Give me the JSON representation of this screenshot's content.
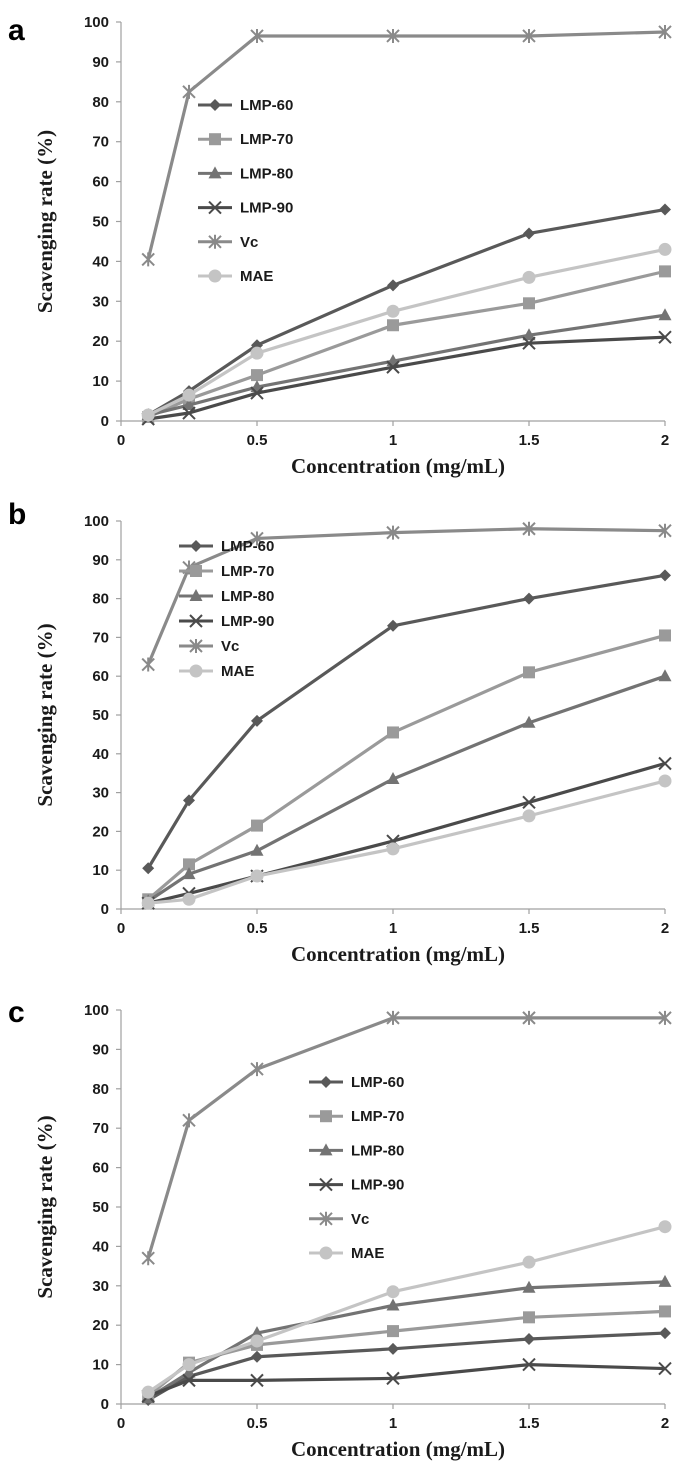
{
  "chart_data": [
    {
      "type": "line",
      "panel_label": "a",
      "xlabel": "Concentration (mg/mL)",
      "ylabel": "Scavenging rate (%)",
      "xlim": [
        0,
        2
      ],
      "ylim": [
        0,
        100
      ],
      "x_ticks": [
        "0",
        "0.5",
        "1",
        "1.5",
        "2"
      ],
      "y_ticks": [
        "0",
        "10",
        "20",
        "30",
        "40",
        "50",
        "60",
        "70",
        "80",
        "90",
        "100"
      ],
      "x": [
        0.1,
        0.25,
        0.5,
        1,
        1.5,
        2
      ],
      "grid": false,
      "legend_position": "top-left",
      "series": [
        {
          "name": "LMP-60",
          "values": [
            1.5,
            7.5,
            19,
            34,
            47,
            53
          ]
        },
        {
          "name": "LMP-70",
          "values": [
            1,
            5.5,
            11.5,
            24,
            29.5,
            37.5
          ]
        },
        {
          "name": "LMP-80",
          "values": [
            1.5,
            4,
            8.5,
            15,
            21.5,
            26.5
          ]
        },
        {
          "name": "LMP-90",
          "values": [
            0.5,
            2,
            7,
            13.5,
            19.5,
            21
          ]
        },
        {
          "name": "Vc",
          "values": [
            40.5,
            82.5,
            96.5,
            96.5,
            96.5,
            97.5
          ]
        },
        {
          "name": "MAE",
          "values": [
            1.5,
            6.5,
            17,
            27.5,
            36,
            43
          ]
        }
      ]
    },
    {
      "type": "line",
      "panel_label": "b",
      "xlabel": "Concentration (mg/mL)",
      "ylabel": "Scavenging rate (%)",
      "xlim": [
        0,
        2
      ],
      "ylim": [
        0,
        100
      ],
      "x_ticks": [
        "0",
        "0.5",
        "1",
        "1.5",
        "2"
      ],
      "y_ticks": [
        "0",
        "10",
        "20",
        "30",
        "40",
        "50",
        "60",
        "70",
        "80",
        "90",
        "100"
      ],
      "x": [
        0.1,
        0.25,
        0.5,
        1,
        1.5,
        2
      ],
      "grid": false,
      "legend_position": "top-left",
      "series": [
        {
          "name": "LMP-60",
          "values": [
            10.5,
            28,
            48.5,
            73,
            80,
            86
          ]
        },
        {
          "name": "LMP-70",
          "values": [
            2.5,
            11.5,
            21.5,
            45.5,
            61,
            70.5
          ]
        },
        {
          "name": "LMP-80",
          "values": [
            2,
            9,
            15,
            33.5,
            48,
            60
          ]
        },
        {
          "name": "LMP-90",
          "values": [
            1.5,
            4,
            8.5,
            17.5,
            27.5,
            37.5
          ]
        },
        {
          "name": "Vc",
          "values": [
            63,
            88,
            95.5,
            97,
            98,
            97.5
          ]
        },
        {
          "name": "MAE",
          "values": [
            1.5,
            2.5,
            8.5,
            15.5,
            24,
            33
          ]
        }
      ]
    },
    {
      "type": "line",
      "panel_label": "c",
      "xlabel": "Concentration (mg/mL)",
      "ylabel": "Scavenging rate (%)",
      "xlim": [
        0,
        2
      ],
      "ylim": [
        0,
        100
      ],
      "x_ticks": [
        "0",
        "0.5",
        "1",
        "1.5",
        "2"
      ],
      "y_ticks": [
        "0",
        "10",
        "20",
        "30",
        "40",
        "50",
        "60",
        "70",
        "80",
        "90",
        "100"
      ],
      "x": [
        0.1,
        0.25,
        0.5,
        1,
        1.5,
        2
      ],
      "grid": false,
      "legend_position": "top-center",
      "series": [
        {
          "name": "LMP-60",
          "values": [
            1,
            7,
            12,
            14,
            16.5,
            18
          ]
        },
        {
          "name": "LMP-70",
          "values": [
            2,
            10.5,
            15,
            18.5,
            22,
            23.5
          ]
        },
        {
          "name": "LMP-80",
          "values": [
            1.5,
            8,
            18,
            25,
            29.5,
            31
          ]
        },
        {
          "name": "LMP-90",
          "values": [
            2,
            6,
            6,
            6.5,
            10,
            9
          ]
        },
        {
          "name": "Vc",
          "values": [
            37,
            72,
            85,
            98,
            98,
            98
          ]
        },
        {
          "name": "MAE",
          "values": [
            3,
            10,
            16,
            28.5,
            36,
            45
          ]
        }
      ]
    }
  ],
  "series_styles": {
    "LMP-60": {
      "color": "#595959",
      "marker": "diamond"
    },
    "LMP-70": {
      "color": "#9a9a9a",
      "marker": "square"
    },
    "LMP-80": {
      "color": "#737373",
      "marker": "triangle"
    },
    "LMP-90": {
      "color": "#4a4a4a",
      "marker": "x"
    },
    "Vc": {
      "color": "#8a8a8a",
      "marker": "star"
    },
    "MAE": {
      "color": "#c4c4c4",
      "marker": "circle"
    }
  },
  "axis_color": "#a0a0a0"
}
